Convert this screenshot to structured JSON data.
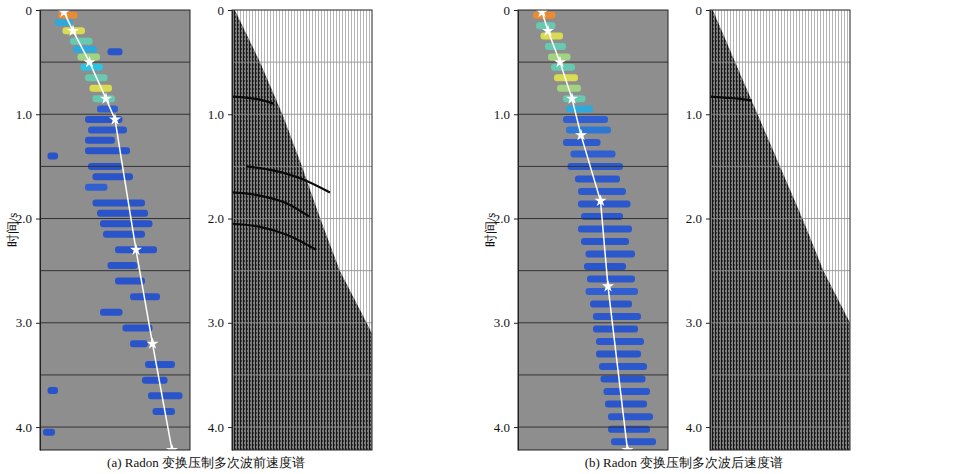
{
  "chart_data": [
    {
      "type": "velocity_analysis",
      "title": "(a) Radon 变换压制多次波前速度谱",
      "ylabel": "时间/s",
      "ylim": [
        0,
        4.22
      ],
      "yticks": [
        0,
        {
          "value": 1,
          "label": "1.0"
        },
        {
          "value": 2,
          "label": "2.0"
        },
        {
          "value": 3,
          "label": "3.0"
        },
        {
          "value": 4,
          "label": "4.0"
        }
      ],
      "grid": true,
      "grid_values": [
        0.5,
        1,
        1.5,
        2,
        2.5,
        3,
        3.5,
        4
      ],
      "tick_labels": "y",
      "xlim": [
        0,
        1
      ],
      "energy_range": [
        0,
        1
      ],
      "spectrum": {
        "picks": {
          "color": "#ffffff",
          "marker": "star",
          "x": [
            0.16,
            0.22,
            0.33,
            0.44,
            0.5,
            0.64,
            0.75,
            0.88
          ],
          "t": [
            0.02,
            0.2,
            0.5,
            0.85,
            1.05,
            2.3,
            3.2,
            4.22
          ]
        },
        "blobs": [
          {
            "t": 0.05,
            "x0": 0.12,
            "x1": 0.25,
            "energy": 0.9
          },
          {
            "t": 0.12,
            "x0": 0.1,
            "x1": 0.22,
            "energy": 0.6
          },
          {
            "t": 0.2,
            "x0": 0.15,
            "x1": 0.3,
            "energy": 0.8
          },
          {
            "t": 0.3,
            "x0": 0.2,
            "x1": 0.35,
            "energy": 0.7
          },
          {
            "t": 0.38,
            "x0": 0.22,
            "x1": 0.38,
            "energy": 0.6
          },
          {
            "t": 0.4,
            "x0": 0.45,
            "x1": 0.55,
            "energy": 0.3
          },
          {
            "t": 0.45,
            "x0": 0.25,
            "x1": 0.4,
            "energy": 0.75
          },
          {
            "t": 0.55,
            "x0": 0.27,
            "x1": 0.42,
            "energy": 0.65
          },
          {
            "t": 0.65,
            "x0": 0.3,
            "x1": 0.45,
            "energy": 0.7
          },
          {
            "t": 0.75,
            "x0": 0.33,
            "x1": 0.48,
            "energy": 0.8
          },
          {
            "t": 0.85,
            "x0": 0.35,
            "x1": 0.5,
            "energy": 0.7
          },
          {
            "t": 0.95,
            "x0": 0.38,
            "x1": 0.52,
            "energy": 0.45
          },
          {
            "t": 1.05,
            "x0": 0.3,
            "x1": 0.55,
            "energy": 0.3
          },
          {
            "t": 1.15,
            "x0": 0.32,
            "x1": 0.58,
            "energy": 0.35
          },
          {
            "t": 1.25,
            "x0": 0.3,
            "x1": 0.5,
            "energy": 0.3
          },
          {
            "t": 1.35,
            "x0": 0.3,
            "x1": 0.6,
            "energy": 0.3
          },
          {
            "t": 1.4,
            "x0": 0.05,
            "x1": 0.12,
            "energy": 0.28
          },
          {
            "t": 1.5,
            "x0": 0.32,
            "x1": 0.55,
            "energy": 0.3
          },
          {
            "t": 1.6,
            "x0": 0.35,
            "x1": 0.62,
            "energy": 0.3
          },
          {
            "t": 1.7,
            "x0": 0.3,
            "x1": 0.45,
            "energy": 0.45
          },
          {
            "t": 1.85,
            "x0": 0.35,
            "x1": 0.7,
            "energy": 0.3
          },
          {
            "t": 1.95,
            "x0": 0.38,
            "x1": 0.72,
            "energy": 0.3
          },
          {
            "t": 2.05,
            "x0": 0.4,
            "x1": 0.75,
            "energy": 0.28
          },
          {
            "t": 2.15,
            "x0": 0.42,
            "x1": 0.7,
            "energy": 0.3
          },
          {
            "t": 2.3,
            "x0": 0.5,
            "x1": 0.78,
            "energy": 0.3
          },
          {
            "t": 2.45,
            "x0": 0.45,
            "x1": 0.65,
            "energy": 0.3
          },
          {
            "t": 2.6,
            "x0": 0.5,
            "x1": 0.7,
            "energy": 0.28
          },
          {
            "t": 2.75,
            "x0": 0.6,
            "x1": 0.8,
            "energy": 0.3
          },
          {
            "t": 2.9,
            "x0": 0.4,
            "x1": 0.55,
            "energy": 0.28
          },
          {
            "t": 3.05,
            "x0": 0.55,
            "x1": 0.75,
            "energy": 0.28
          },
          {
            "t": 3.2,
            "x0": 0.6,
            "x1": 0.72,
            "energy": 0.3
          },
          {
            "t": 3.4,
            "x0": 0.7,
            "x1": 0.9,
            "energy": 0.3
          },
          {
            "t": 3.55,
            "x0": 0.68,
            "x1": 0.85,
            "energy": 0.28
          },
          {
            "t": 3.65,
            "x0": 0.05,
            "x1": 0.12,
            "energy": 0.28
          },
          {
            "t": 3.7,
            "x0": 0.72,
            "x1": 0.95,
            "energy": 0.3
          },
          {
            "t": 3.85,
            "x0": 0.75,
            "x1": 0.9,
            "energy": 0.3
          },
          {
            "t": 4.05,
            "x0": 0.02,
            "x1": 0.1,
            "energy": 0.3
          }
        ]
      },
      "gather": {
        "first_break": {
          "x": [
            0.02,
            0.2,
            0.36,
            0.5,
            0.63,
            0.77,
            1.0
          ],
          "t": [
            0,
            0.5,
            1,
            1.5,
            2,
            2.5,
            3.1
          ]
        },
        "events": [
          {
            "x": [
              0,
              0.1,
              0.2,
              0.3
            ],
            "t": [
              0.83,
              0.84,
              0.86,
              0.9
            ]
          },
          {
            "x": [
              0.1,
              0.3,
              0.5,
              0.7
            ],
            "t": [
              1.5,
              1.54,
              1.62,
              1.75
            ]
          },
          {
            "x": [
              0,
              0.2,
              0.4,
              0.55
            ],
            "t": [
              1.75,
              1.78,
              1.86,
              1.98
            ]
          },
          {
            "x": [
              0,
              0.2,
              0.4,
              0.6
            ],
            "t": [
              2.05,
              2.08,
              2.16,
              2.3
            ]
          }
        ]
      }
    },
    {
      "type": "velocity_analysis",
      "title": "(b) Radon 变换压制多次波后速度谱",
      "ylabel": "时间/s",
      "ylim": [
        0,
        4.22
      ],
      "yticks": [
        0,
        {
          "value": 1,
          "label": "1.0"
        },
        {
          "value": 2,
          "label": "2.0"
        },
        {
          "value": 3,
          "label": "3.0"
        },
        {
          "value": 4,
          "label": "4.0"
        }
      ],
      "grid": true,
      "grid_values": [
        0.5,
        1,
        1.5,
        2,
        2.5,
        3,
        3.5,
        4
      ],
      "tick_labels": "y",
      "xlim": [
        0,
        1
      ],
      "energy_range": [
        0,
        1
      ],
      "spectrum": {
        "picks": {
          "color": "#ffffff",
          "marker": "star",
          "x": [
            0.16,
            0.2,
            0.28,
            0.36,
            0.42,
            0.55,
            0.6,
            0.73
          ],
          "t": [
            0.02,
            0.2,
            0.5,
            0.85,
            1.2,
            1.83,
            2.65,
            4.22
          ]
        },
        "blobs": [
          {
            "t": 0.05,
            "x0": 0.1,
            "x1": 0.25,
            "energy": 0.9
          },
          {
            "t": 0.15,
            "x0": 0.12,
            "x1": 0.25,
            "energy": 0.7
          },
          {
            "t": 0.25,
            "x0": 0.15,
            "x1": 0.3,
            "energy": 0.8
          },
          {
            "t": 0.35,
            "x0": 0.18,
            "x1": 0.32,
            "energy": 0.7
          },
          {
            "t": 0.45,
            "x0": 0.2,
            "x1": 0.35,
            "energy": 0.75
          },
          {
            "t": 0.55,
            "x0": 0.22,
            "x1": 0.38,
            "energy": 0.7
          },
          {
            "t": 0.65,
            "x0": 0.24,
            "x1": 0.4,
            "energy": 0.8
          },
          {
            "t": 0.75,
            "x0": 0.26,
            "x1": 0.42,
            "energy": 0.75
          },
          {
            "t": 0.85,
            "x0": 0.3,
            "x1": 0.45,
            "energy": 0.7
          },
          {
            "t": 0.95,
            "x0": 0.32,
            "x1": 0.5,
            "energy": 0.6
          },
          {
            "t": 1.05,
            "x0": 0.3,
            "x1": 0.6,
            "energy": 0.45
          },
          {
            "t": 1.15,
            "x0": 0.32,
            "x1": 0.62,
            "energy": 0.5
          },
          {
            "t": 1.27,
            "x0": 0.3,
            "x1": 0.55,
            "energy": 0.4
          },
          {
            "t": 1.38,
            "x0": 0.35,
            "x1": 0.65,
            "energy": 0.45
          },
          {
            "t": 1.5,
            "x0": 0.33,
            "x1": 0.7,
            "energy": 0.4
          },
          {
            "t": 1.62,
            "x0": 0.38,
            "x1": 0.68,
            "energy": 0.35
          },
          {
            "t": 1.74,
            "x0": 0.4,
            "x1": 0.72,
            "energy": 0.4
          },
          {
            "t": 1.86,
            "x0": 0.4,
            "x1": 0.75,
            "energy": 0.35
          },
          {
            "t": 1.98,
            "x0": 0.42,
            "x1": 0.7,
            "energy": 0.35
          },
          {
            "t": 2.1,
            "x0": 0.4,
            "x1": 0.76,
            "energy": 0.35
          },
          {
            "t": 2.22,
            "x0": 0.42,
            "x1": 0.74,
            "energy": 0.32
          },
          {
            "t": 2.34,
            "x0": 0.45,
            "x1": 0.78,
            "energy": 0.35
          },
          {
            "t": 2.46,
            "x0": 0.44,
            "x1": 0.72,
            "energy": 0.32
          },
          {
            "t": 2.58,
            "x0": 0.46,
            "x1": 0.78,
            "energy": 0.35
          },
          {
            "t": 2.7,
            "x0": 0.45,
            "x1": 0.8,
            "energy": 0.45
          },
          {
            "t": 2.82,
            "x0": 0.48,
            "x1": 0.76,
            "energy": 0.32
          },
          {
            "t": 2.94,
            "x0": 0.5,
            "x1": 0.82,
            "energy": 0.35
          },
          {
            "t": 3.06,
            "x0": 0.5,
            "x1": 0.8,
            "energy": 0.32
          },
          {
            "t": 3.18,
            "x0": 0.52,
            "x1": 0.84,
            "energy": 0.35
          },
          {
            "t": 3.3,
            "x0": 0.52,
            "x1": 0.82,
            "energy": 0.32
          },
          {
            "t": 3.42,
            "x0": 0.54,
            "x1": 0.86,
            "energy": 0.35
          },
          {
            "t": 3.54,
            "x0": 0.55,
            "x1": 0.85,
            "energy": 0.32
          },
          {
            "t": 3.66,
            "x0": 0.57,
            "x1": 0.88,
            "energy": 0.35
          },
          {
            "t": 3.78,
            "x0": 0.58,
            "x1": 0.86,
            "energy": 0.32
          },
          {
            "t": 3.9,
            "x0": 0.6,
            "x1": 0.9,
            "energy": 0.35
          },
          {
            "t": 4.02,
            "x0": 0.6,
            "x1": 0.88,
            "energy": 0.32
          },
          {
            "t": 4.14,
            "x0": 0.62,
            "x1": 0.92,
            "energy": 0.35
          }
        ]
      },
      "gather": {
        "first_break": {
          "x": [
            0.02,
            0.18,
            0.34,
            0.5,
            0.66,
            0.81,
            1.0
          ],
          "t": [
            0,
            0.5,
            1,
            1.5,
            2,
            2.5,
            3.0
          ]
        },
        "events": [
          {
            "x": [
              0,
              0.1,
              0.2,
              0.3
            ],
            "t": [
              0.83,
              0.84,
              0.85,
              0.87
            ]
          }
        ]
      }
    }
  ]
}
